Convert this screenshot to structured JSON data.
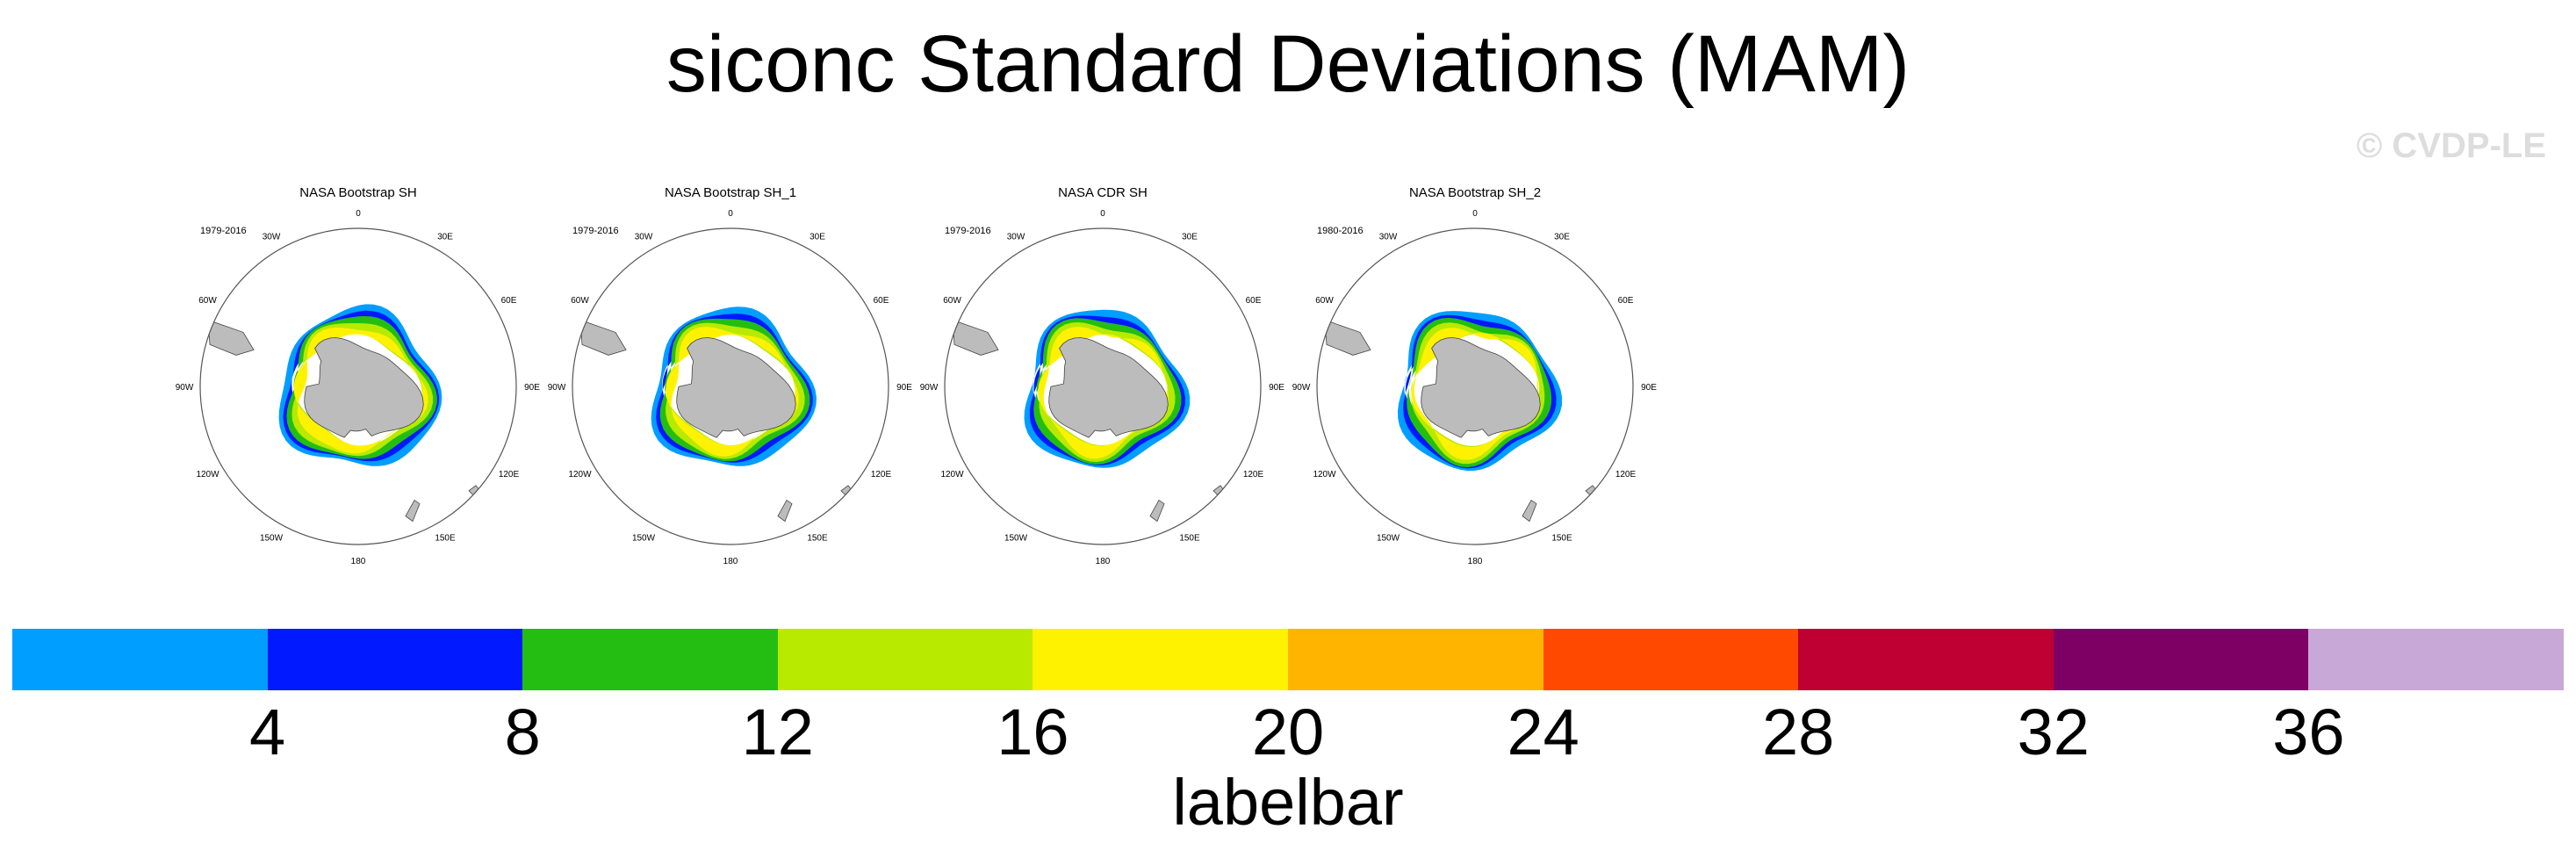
{
  "title": "siconc Standard Deviations (MAM)",
  "watermark": "© CVDP-LE",
  "colors": {
    "land": "#bcbcbc",
    "ocean_no_ice": "#ffffff",
    "outline": "#555555",
    "colorbar": [
      "#009eff",
      "#0019ff",
      "#24be12",
      "#b8ea00",
      "#fff200",
      "#ffb400",
      "#ff4900",
      "#be0032",
      "#7f0065",
      "#c8a8d6"
    ]
  },
  "chart_data": {
    "type": "heatmap",
    "projection": "south polar stereographic",
    "panels": [
      {
        "title": "NASA Bootstrap SH",
        "years": "1979-2016"
      },
      {
        "title": "NASA Bootstrap SH_1",
        "years": "1979-2016"
      },
      {
        "title": "NASA CDR SH",
        "years": "1979-2016"
      },
      {
        "title": "NASA Bootstrap SH_2",
        "years": "1980-2016"
      }
    ],
    "longitude_labels": [
      "0",
      "30E",
      "60E",
      "90E",
      "120E",
      "150E",
      "180",
      "150W",
      "120W",
      "90W",
      "60W",
      "30W"
    ],
    "colorbar": {
      "title": "labelbar",
      "ticks": [
        "4",
        "8",
        "12",
        "16",
        "20",
        "24",
        "28",
        "32",
        "36"
      ],
      "levels": [
        4,
        8,
        12,
        16,
        20,
        24,
        28,
        32,
        36
      ]
    }
  }
}
